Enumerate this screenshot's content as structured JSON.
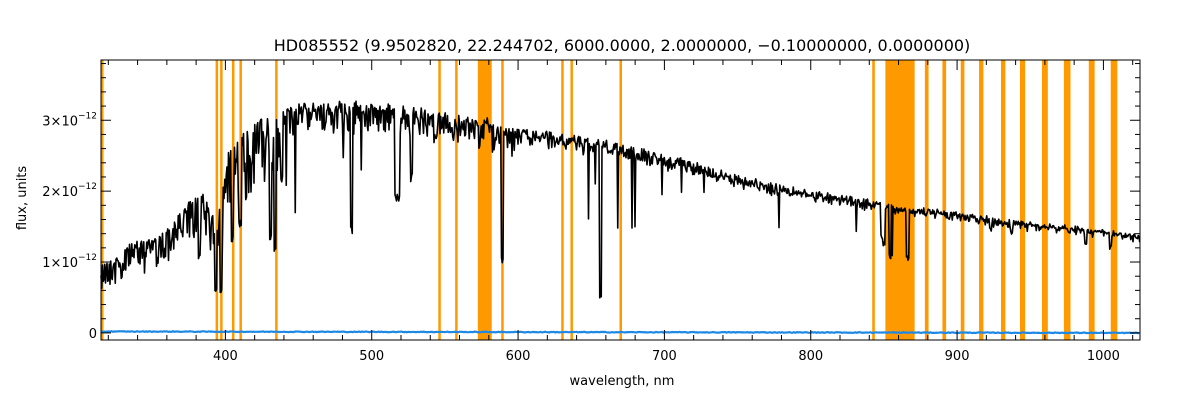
{
  "chart_data": {
    "type": "line",
    "title": "HD085552    (9.9502820, 22.244702, 6000.0000, 2.0000000, −0.10000000, 0.0000000)",
    "xlabel": "wavelength, nm",
    "ylabel": "flux, units",
    "xlim": [
      315,
      1025
    ],
    "ylim": [
      -1e-13,
      3.85e-12
    ],
    "x_ticks": [
      400,
      500,
      600,
      700,
      800,
      900,
      1000
    ],
    "x_tick_labels": [
      "400",
      "500",
      "600",
      "700",
      "800",
      "900",
      "1000"
    ],
    "y_ticks": [
      0,
      1e-12,
      2e-12,
      3e-12
    ],
    "y_tick_labels": [
      {
        "mantissa": "0",
        "exponent": ""
      },
      {
        "mantissa": "1×10",
        "exponent": "−12"
      },
      {
        "mantissa": "2×10",
        "exponent": "−12"
      },
      {
        "mantissa": "3×10",
        "exponent": "−12"
      }
    ],
    "series": [
      {
        "color": "#000000",
        "x": [
          315,
          325,
          335,
          345,
          355,
          365,
          375,
          385,
          392,
          397,
          402,
          410,
          420,
          430,
          440,
          450,
          460,
          470,
          480,
          490,
          500,
          510,
          520,
          530,
          540,
          550,
          560,
          570,
          578,
          585,
          600,
          620,
          640,
          660,
          680,
          700,
          720,
          740,
          760,
          780,
          800,
          820,
          840,
          850,
          860,
          870,
          880,
          900,
          920,
          940,
          960,
          980,
          1000,
          1010,
          1025
        ],
        "y": [
          9.5e-13,
          1.05e-12,
          1.25e-12,
          1.3e-12,
          1.35e-12,
          1.55e-12,
          1.85e-12,
          1.95e-12,
          1.7e-12,
          1.85e-12,
          2.55e-12,
          2.8e-12,
          2.95e-12,
          3e-12,
          3.1e-12,
          3.18e-12,
          3.2e-12,
          3.22e-12,
          3.25e-12,
          3.22e-12,
          3.2e-12,
          3.18e-12,
          3.15e-12,
          3.13e-12,
          3.1e-12,
          3.08e-12,
          3.05e-12,
          3.02e-12,
          3e-12,
          2.9e-12,
          2.85e-12,
          2.8e-12,
          2.73e-12,
          2.68e-12,
          2.58e-12,
          2.48e-12,
          2.38e-12,
          2.25e-12,
          2.15e-12,
          2.05e-12,
          1.98e-12,
          1.92e-12,
          1.85e-12,
          1.8e-12,
          1.78e-12,
          1.75e-12,
          1.73e-12,
          1.68e-12,
          1.62e-12,
          1.56e-12,
          1.52e-12,
          1.48e-12,
          1.44e-12,
          1.4e-12,
          1.37e-12
        ]
      },
      {
        "color": "#1e88e5",
        "x": [
          315,
          1025
        ],
        "y": [
          2e-14,
          0.0
        ]
      }
    ],
    "masked_regions": {
      "color": "#ff9900",
      "bands": [
        [
          315,
          316.5
        ],
        [
          393.3,
          394.3
        ],
        [
          396.4,
          397.4
        ],
        [
          404.5,
          405.5
        ],
        [
          409.6,
          410.6
        ],
        [
          434.0,
          435.2
        ],
        [
          545.5,
          546.7
        ],
        [
          557.0,
          558.2
        ],
        [
          572.5,
          582.0
        ],
        [
          588.5,
          590.0
        ],
        [
          629.5,
          630.7
        ],
        [
          635.8,
          637.0
        ],
        [
          669.3,
          670.5
        ],
        [
          842.0,
          843.8
        ],
        [
          851.0,
          871.0
        ],
        [
          878.0,
          880.5
        ],
        [
          890.0,
          892.5
        ],
        [
          902.5,
          905.0
        ],
        [
          915.0,
          918.0
        ],
        [
          930.0,
          933.0
        ],
        [
          943.0,
          946.5
        ],
        [
          958.0,
          962.0
        ],
        [
          973.0,
          977.5
        ],
        [
          990.0,
          994.0
        ],
        [
          1005.0,
          1009.5
        ]
      ]
    },
    "grid": false,
    "legend": "none"
  }
}
